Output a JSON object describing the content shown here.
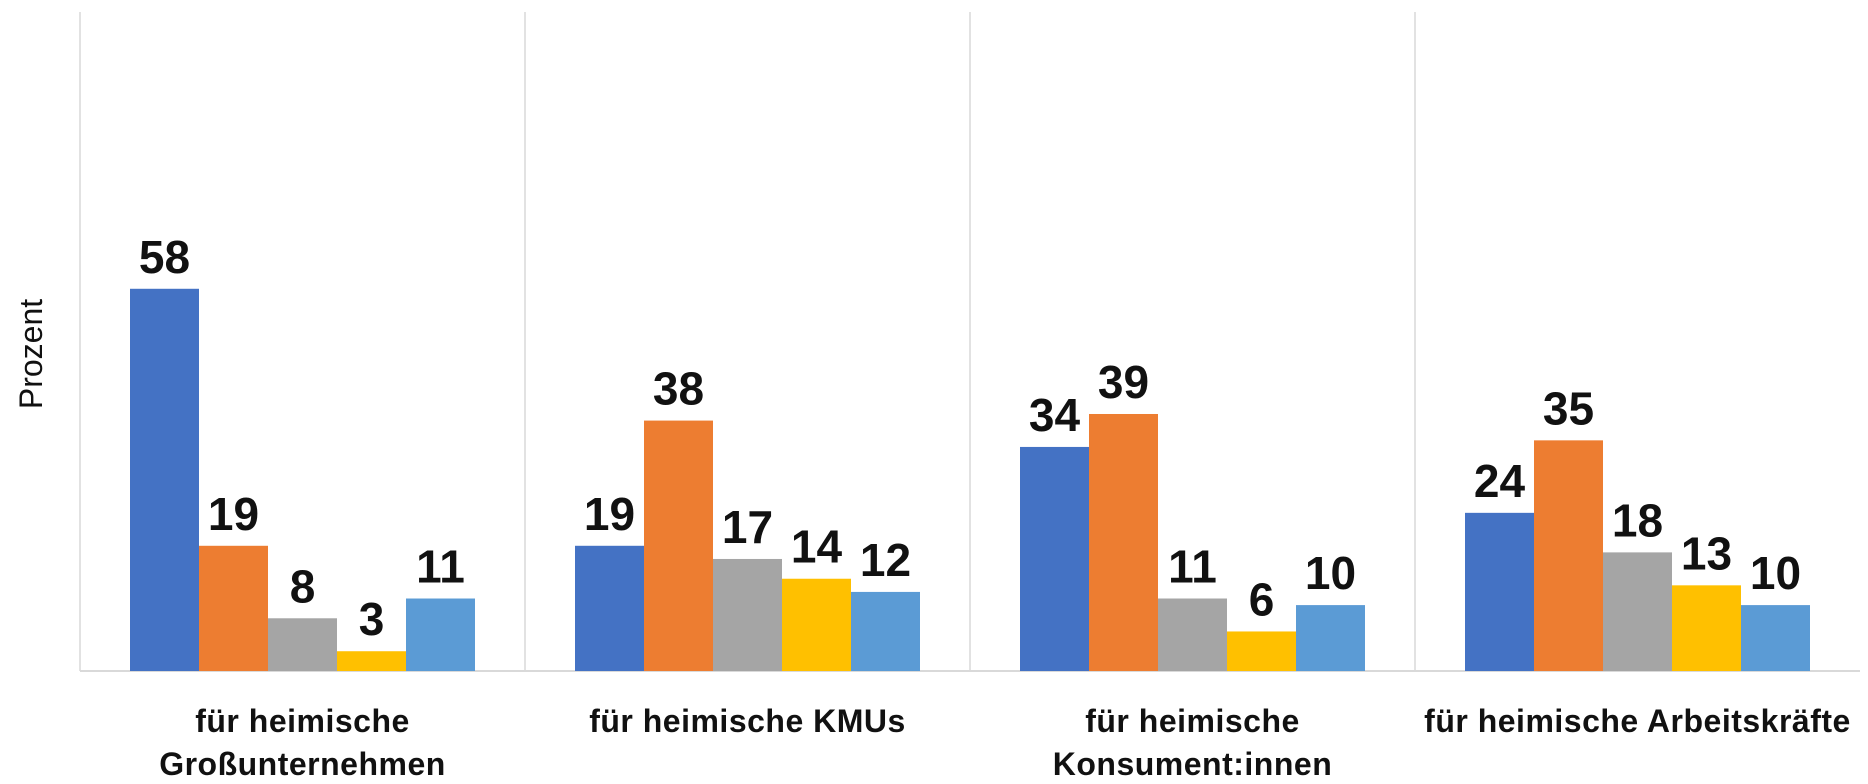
{
  "chart_data": {
    "type": "bar",
    "y_label": "Prozent",
    "categories": [
      "für heimische Großunternehmen",
      "für heimische KMUs",
      "für heimische Konsument:innen",
      "für heimische Arbeitskräfte"
    ],
    "series": [
      {
        "color": "#4472c4",
        "values": [
          58,
          19,
          34,
          24
        ]
      },
      {
        "color": "#ed7d31",
        "values": [
          19,
          38,
          39,
          35
        ]
      },
      {
        "color": "#a5a5a5",
        "values": [
          8,
          17,
          11,
          18
        ]
      },
      {
        "color": "#ffc000",
        "values": [
          3,
          14,
          6,
          13
        ]
      },
      {
        "color": "#5b9bd5",
        "values": [
          11,
          12,
          10,
          10
        ]
      }
    ],
    "ylim": [
      0,
      100
    ]
  }
}
